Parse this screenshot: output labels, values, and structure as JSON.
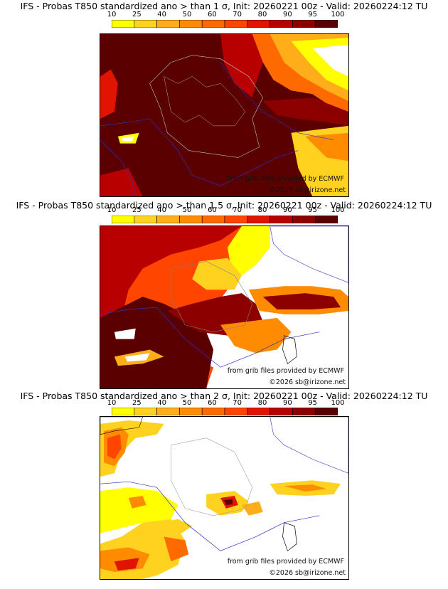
{
  "legend": {
    "ticks": [
      "10",
      "25",
      "40",
      "50",
      "60",
      "70",
      "80",
      "90",
      "95",
      "100"
    ],
    "colors": [
      "#ffff00",
      "#ffd21f",
      "#ffae1a",
      "#ff8c00",
      "#ff6a00",
      "#ff4500",
      "#e01400",
      "#b80000",
      "#8c0000",
      "#5a0000"
    ]
  },
  "credits": {
    "source": "from grib files provided by ECMWF",
    "copyright": "©2026 sb@irizone.net"
  },
  "panels": [
    {
      "title": "IFS - Probas T850  standardized ano > than 1 σ, Init: 20260221 00z - Valid: 20260224:12 TU"
    },
    {
      "title": "IFS - Probas T850  standardized ano > than 1.5 σ, Init: 20260221 00z - Valid: 20260224:12 TU"
    },
    {
      "title": "IFS - Probas T850  standardized ano > than 2 σ, Init: 20260221 00z - Valid: 20260224:12 TU"
    }
  ]
}
